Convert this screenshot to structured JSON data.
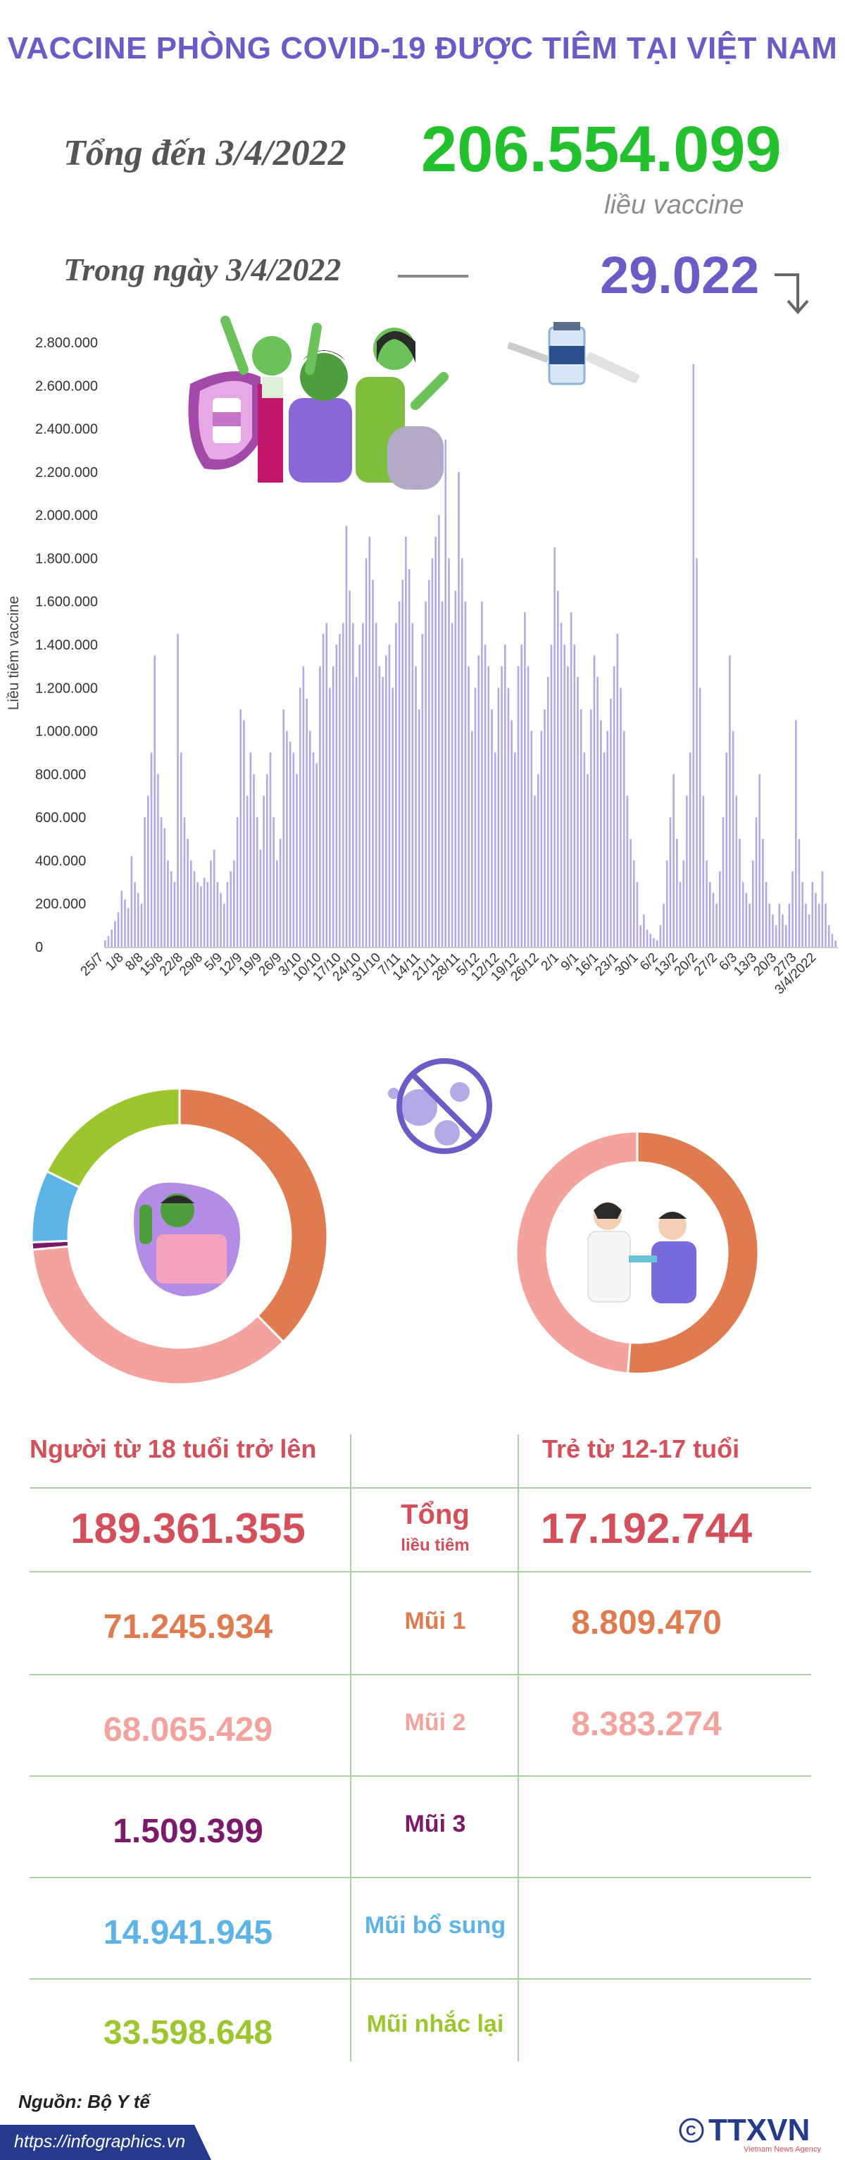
{
  "header": {
    "title": "VACCINE PHÒNG COVID-19 ĐƯỢC TIÊM TẠI VIỆT NAM",
    "total_label": "Tổng đến 3/4/2022",
    "total_value": "206.554.099",
    "total_unit": "liều vaccine",
    "day_label": "Trong ngày 3/4/2022",
    "day_value": "29.022"
  },
  "colors": {
    "title": "#6a5bc7",
    "total": "#22c12d",
    "bars": "#b3a9e6",
    "dose1": "#e07a4f",
    "dose2": "#f4a29e",
    "dose3": "#7b1a6b",
    "additional": "#5bb3e6",
    "booster": "#9bc62e",
    "header_red": "#d34f5a"
  },
  "chart_data": {
    "type": "bar",
    "ylabel": "Liều tiêm vaccine",
    "ylim": [
      0,
      2800000
    ],
    "yticks": [
      "2.800.000",
      "2.600.000",
      "2.400.000",
      "2.200.000",
      "2.000.000",
      "1.800.000",
      "1.600.000",
      "1.400.000",
      "1.200.000",
      "1.000.000",
      "800.000",
      "600.000",
      "400.000",
      "200.000",
      "0"
    ],
    "xtick_labels": [
      "25/7",
      "1/8",
      "8/8",
      "15/8",
      "22/8",
      "29/8",
      "5/9",
      "12/9",
      "19/9",
      "26/9",
      "3/10",
      "10/10",
      "17/10",
      "24/10",
      "31/10",
      "7/11",
      "14/11",
      "21/11",
      "28/11",
      "5/12",
      "12/12",
      "19/12",
      "26/12",
      "2/1",
      "9/1",
      "16/1",
      "23/1",
      "30/1",
      "6/2",
      "13/2",
      "20/2",
      "27/2",
      "6/3",
      "13/3",
      "20/3",
      "27/3",
      "3/4/2022"
    ],
    "values": [
      30000,
      50000,
      80000,
      120000,
      160000,
      260000,
      220000,
      180000,
      420000,
      300000,
      250000,
      200000,
      600000,
      700000,
      900000,
      1350000,
      800000,
      600000,
      550000,
      400000,
      350000,
      300000,
      1450000,
      900000,
      600000,
      500000,
      400000,
      350000,
      300000,
      280000,
      320000,
      300000,
      400000,
      450000,
      300000,
      250000,
      200000,
      300000,
      350000,
      400000,
      600000,
      1100000,
      1050000,
      700000,
      900000,
      800000,
      600000,
      450000,
      700000,
      800000,
      900000,
      600000,
      400000,
      500000,
      1100000,
      1000000,
      950000,
      900000,
      800000,
      1200000,
      1300000,
      1150000,
      1000000,
      900000,
      850000,
      1300000,
      1450000,
      1500000,
      1200000,
      1300000,
      1400000,
      1450000,
      1500000,
      1950000,
      1650000,
      1500000,
      1250000,
      1400000,
      1500000,
      1800000,
      1900000,
      1700000,
      1500000,
      1300000,
      1250000,
      1350000,
      1400000,
      1200000,
      1500000,
      1600000,
      1700000,
      1900000,
      1750000,
      1500000,
      1300000,
      1100000,
      1450000,
      1600000,
      1700000,
      1800000,
      1900000,
      2000000,
      1600000,
      2350000,
      1800000,
      1500000,
      1650000,
      2200000,
      1800000,
      1600000,
      1300000,
      1000000,
      1200000,
      1350000,
      1600000,
      1400000,
      1300000,
      1100000,
      900000,
      1200000,
      1300000,
      1400000,
      1200000,
      1050000,
      900000,
      1300000,
      1400000,
      1550000,
      1300000,
      1000000,
      700000,
      800000,
      1000000,
      1100000,
      1250000,
      1400000,
      1850000,
      1650000,
      1500000,
      1400000,
      1300000,
      1550000,
      1400000,
      1250000,
      1100000,
      900000,
      800000,
      1100000,
      1350000,
      1250000,
      1050000,
      900000,
      1000000,
      1150000,
      1300000,
      1450000,
      1200000,
      1000000,
      700000,
      500000,
      400000,
      300000,
      100000,
      150000,
      80000,
      60000,
      40000,
      30000,
      100000,
      200000,
      400000,
      600000,
      800000,
      500000,
      300000,
      400000,
      700000,
      900000,
      2700000,
      1800000,
      1200000,
      700000,
      400000,
      300000,
      250000,
      200000,
      350000,
      600000,
      900000,
      1350000,
      1000000,
      700000,
      500000,
      300000,
      250000,
      200000,
      400000,
      600000,
      800000,
      500000,
      300000,
      200000,
      150000,
      100000,
      200000,
      150000,
      100000,
      200000,
      350000,
      1050000,
      500000,
      300000,
      200000,
      150000,
      300000,
      250000,
      200000,
      350000,
      200000,
      100000,
      60000,
      29022
    ]
  },
  "donut_adults": {
    "segments": [
      {
        "key": "dose1",
        "value": 71245934
      },
      {
        "key": "dose2",
        "value": 68065429
      },
      {
        "key": "dose3",
        "value": 1509399
      },
      {
        "key": "additional",
        "value": 14941945
      },
      {
        "key": "booster",
        "value": 33598648
      }
    ]
  },
  "donut_children": {
    "segments": [
      {
        "key": "dose1",
        "value": 8809470
      },
      {
        "key": "dose2",
        "value": 8383274
      }
    ]
  },
  "table": {
    "adult_header": "Người từ 18 tuổi trở lên",
    "child_header": "Trẻ từ 12-17 tuổi",
    "total_label": "Tổng",
    "total_sublabel": "liều tiêm",
    "rows": [
      {
        "label": "",
        "adult": "189.361.355",
        "child": "17.192.744"
      },
      {
        "label": "Mũi 1",
        "adult": "71.245.934",
        "child": "8.809.470"
      },
      {
        "label": "Mũi 2",
        "adult": "68.065.429",
        "child": "8.383.274"
      },
      {
        "label": "Mũi 3",
        "adult": "1.509.399",
        "child": ""
      },
      {
        "label": "Mũi bổ sung",
        "adult": "14.941.945",
        "child": ""
      },
      {
        "label": "Mũi nhắc lại",
        "adult": "33.598.648",
        "child": ""
      }
    ]
  },
  "source": "Nguồn: Bộ Y tế",
  "footer_url": "https://infographics.vn",
  "logo_text": "TTXVN",
  "logo_sub": "Vietnam News Agency"
}
